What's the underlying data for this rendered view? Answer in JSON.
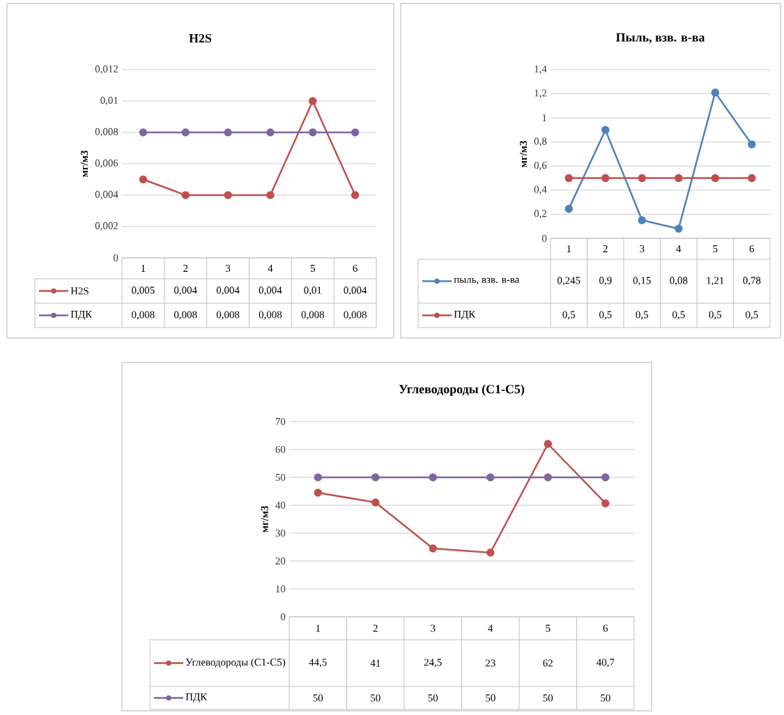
{
  "chart_data": [
    {
      "type": "line",
      "title": "H2S",
      "ylabel": "мг/м3",
      "categories": [
        "1",
        "2",
        "3",
        "4",
        "5",
        "6"
      ],
      "ylim": [
        0,
        0.012
      ],
      "yticks": [
        0,
        {
          "value": 0.002,
          "label": "0,002"
        },
        {
          "value": 0.004,
          "label": "0,004"
        },
        {
          "value": 0.006,
          "label": "0,006"
        },
        {
          "value": 0.008,
          "label": "0,008"
        },
        {
          "value": 0.01,
          "label": "0,01"
        },
        {
          "value": 0.012,
          "label": "0,012"
        }
      ],
      "grid": "y",
      "legend": "bottom",
      "marker": "circle",
      "line_style": "solid",
      "series": [
        {
          "name": "H2S",
          "color": "#c0504d",
          "values": [
            0.005,
            0.004,
            0.004,
            0.004,
            0.01,
            0.004
          ],
          "value_labels": [
            "0,005",
            "0,004",
            "0,004",
            "0,004",
            "0,01",
            "0,004"
          ]
        },
        {
          "name": "ПДК",
          "color": "#8064a2",
          "values": [
            0.008,
            0.008,
            0.008,
            0.008,
            0.008,
            0.008
          ],
          "value_labels": [
            "0,008",
            "0,008",
            "0,008",
            "0,008",
            "0,008",
            "0,008"
          ]
        }
      ]
    },
    {
      "type": "line",
      "title": "Пыль, взв. в-ва",
      "ylabel": "мг/м3",
      "categories": [
        "1",
        "2",
        "3",
        "4",
        "5",
        "6"
      ],
      "ylim": [
        0,
        1.4
      ],
      "yticks": [
        0,
        {
          "value": 0.2,
          "label": "0,2"
        },
        {
          "value": 0.4,
          "label": "0,4"
        },
        {
          "value": 0.6,
          "label": "0,6"
        },
        {
          "value": 0.8,
          "label": "0,8"
        },
        1,
        {
          "value": 1.2,
          "label": "1,2"
        },
        {
          "value": 1.4,
          "label": "1,4"
        }
      ],
      "grid": "y",
      "legend": "bottom",
      "marker": "circle",
      "line_style": "solid",
      "series": [
        {
          "name": "пыль, взв. в-ва",
          "color": "#4f81bd",
          "values": [
            0.245,
            0.9,
            0.15,
            0.08,
            1.21,
            0.78
          ],
          "value_labels": [
            "0,245",
            "0,9",
            "0,15",
            "0,08",
            "1,21",
            "0,78"
          ]
        },
        {
          "name": "ПДК",
          "color": "#c0504d",
          "values": [
            0.5,
            0.5,
            0.5,
            0.5,
            0.5,
            0.5
          ],
          "value_labels": [
            "0,5",
            "0,5",
            "0,5",
            "0,5",
            "0,5",
            "0,5"
          ]
        }
      ]
    },
    {
      "type": "line",
      "title": "Углеводороды (С1-С5)",
      "ylabel": "мг/м3",
      "categories": [
        "1",
        "2",
        "3",
        "4",
        "5",
        "6"
      ],
      "ylim": [
        0,
        70
      ],
      "yticks": [
        0,
        10,
        20,
        30,
        40,
        50,
        60,
        70
      ],
      "grid": "y",
      "legend": "bottom",
      "marker": "circle",
      "line_style": "solid",
      "series": [
        {
          "name": "Углеводороды (С1-С5)",
          "color": "#c0504d",
          "values": [
            44.5,
            41,
            24.5,
            23,
            62,
            40.7
          ],
          "value_labels": [
            "44,5",
            "41",
            "24,5",
            "23",
            "62",
            "40,7"
          ]
        },
        {
          "name": "ПДК",
          "color": "#8064a2",
          "values": [
            50,
            50,
            50,
            50,
            50,
            50
          ],
          "value_labels": [
            "50",
            "50",
            "50",
            "50",
            "50",
            "50"
          ]
        }
      ]
    }
  ]
}
